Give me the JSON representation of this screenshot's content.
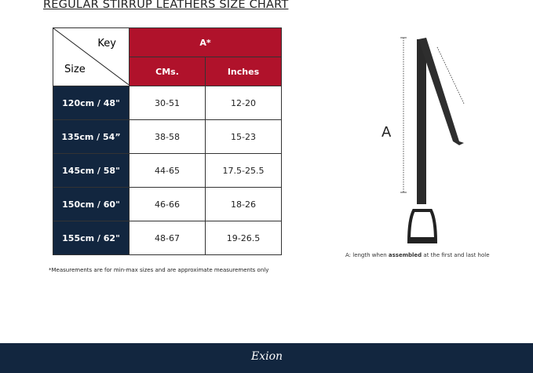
{
  "title": "REGULAR STIRRUP LEATHERS  SIZE CHART",
  "table": {
    "key_label": "Key",
    "size_label": "Size",
    "group_header": "A*",
    "columns": [
      "CMs.",
      "Inches"
    ],
    "rows": [
      {
        "size": "120cm / 48\"",
        "cms": "30-51",
        "inches": "12-20"
      },
      {
        "size": "135cm / 54”",
        "cms": "38-58",
        "inches": "15-23"
      },
      {
        "size": "145cm / 58\"",
        "cms": "44-65",
        "inches": "17.5-25.5"
      },
      {
        "size": "150cm / 60\"",
        "cms": "46-66",
        "inches": "18-26"
      },
      {
        "size": "155cm / 62\"",
        "cms": "48-67",
        "inches": "19-26.5"
      }
    ]
  },
  "footnote": "*Measurements are for min-max sizes and are approximate measurements only",
  "diagram": {
    "label": "A",
    "caption_prefix": "A: length when ",
    "caption_bold": "assembled",
    "caption_suffix": " at the first and last hole"
  },
  "brand": "Exion",
  "colors": {
    "header_red": "#b0122b",
    "size_navy": "#12263f",
    "footer": "#12263f"
  }
}
